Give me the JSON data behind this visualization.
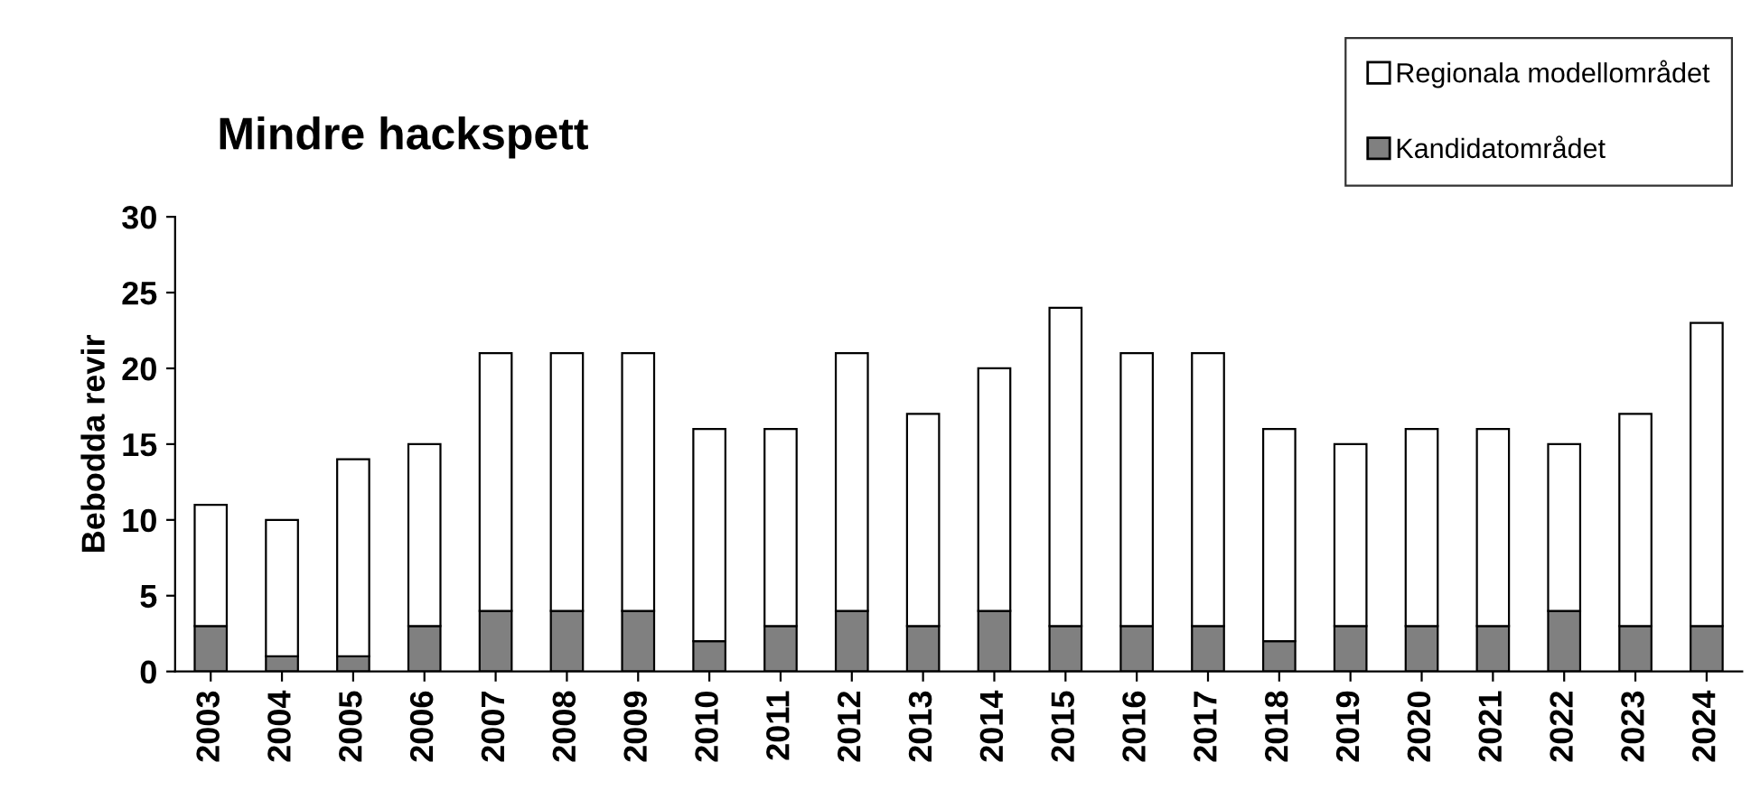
{
  "chart_data": {
    "type": "bar",
    "title": "Mindre hackspett",
    "ylabel": "Bebodda revir",
    "categories": [
      "2003",
      "2004",
      "2005",
      "2006",
      "2007",
      "2008",
      "2009",
      "2010",
      "2011",
      "2012",
      "2013",
      "2014",
      "2015",
      "2016",
      "2017",
      "2018",
      "2019",
      "2020",
      "2021",
      "2022",
      "2023",
      "2024"
    ],
    "series": [
      {
        "name": "Kandidatområdet",
        "color": "#808080",
        "values": [
          3,
          1,
          1,
          3,
          4,
          4,
          4,
          2,
          3,
          4,
          3,
          4,
          3,
          3,
          3,
          2,
          3,
          3,
          3,
          4,
          3,
          3
        ]
      },
      {
        "name": "Regionala modellområdet",
        "color": "#ffffff",
        "values": [
          8,
          9,
          13,
          12,
          17,
          17,
          17,
          14,
          13,
          17,
          14,
          16,
          21,
          18,
          18,
          14,
          12,
          13,
          13,
          11,
          14,
          20
        ]
      }
    ],
    "stacked": true,
    "ylim": [
      0,
      30
    ],
    "yticks": [
      0,
      5,
      10,
      15,
      20,
      25,
      30
    ],
    "grid": false,
    "legend": "top right"
  }
}
